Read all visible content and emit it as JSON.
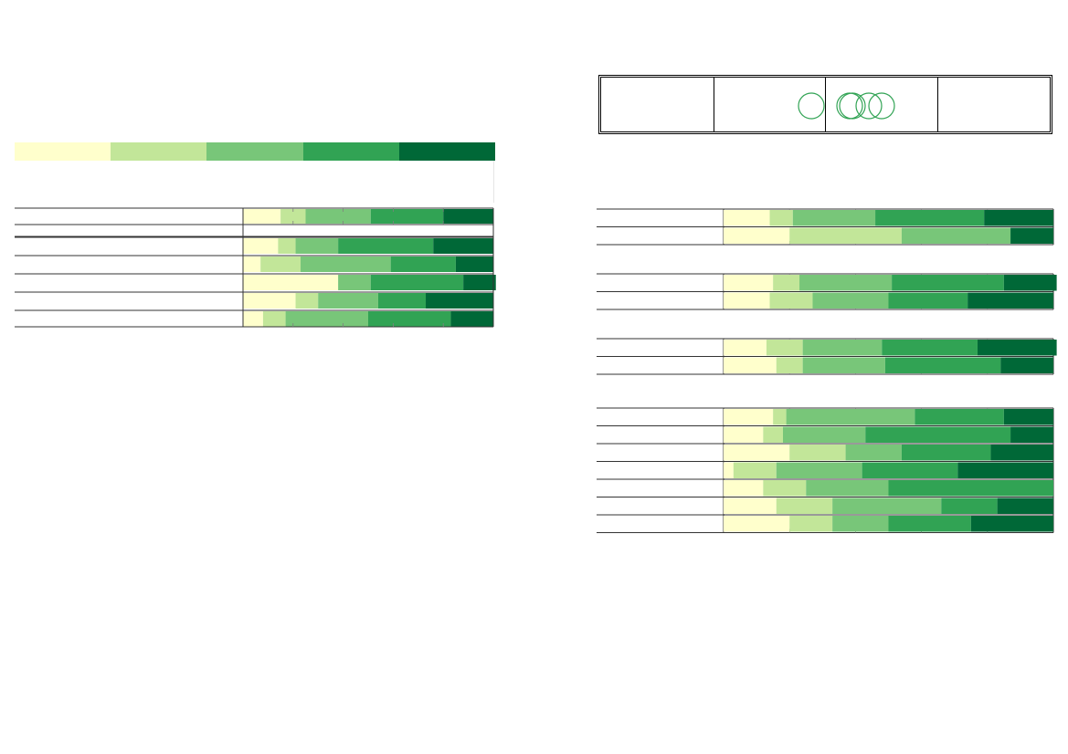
{
  "palette": [
    "#ffffcc",
    "#c2e699",
    "#78c679",
    "#31a354",
    "#006837"
  ],
  "legend": {
    "swatches": 5
  },
  "circles_box": {
    "columns": 4,
    "circles_in_col2": 1,
    "circles_in_col3": 4
  },
  "chart_data": [
    {
      "type": "bar",
      "stacked": true,
      "orientation": "horizontal",
      "title": "",
      "xlabel": "",
      "ylabel": "",
      "xlim": [
        0,
        100
      ],
      "categories": [
        "",
        "",
        "",
        "",
        "",
        ""
      ],
      "series": [
        {
          "values": [
            15,
            14,
            7,
            38,
            21,
            8
          ]
        },
        {
          "values": [
            10,
            7,
            16,
            0,
            9,
            9
          ]
        },
        {
          "values": [
            26,
            17,
            36,
            13,
            24,
            33
          ]
        },
        {
          "values": [
            29,
            38,
            26,
            37,
            19,
            33
          ]
        },
        {
          "values": [
            20,
            24,
            15,
            13,
            27,
            17
          ]
        }
      ]
    },
    {
      "type": "bar",
      "stacked": true,
      "orientation": "horizontal",
      "title": "",
      "xlabel": "",
      "ylabel": "",
      "xlim": [
        0,
        100
      ],
      "groups": [
        {
          "categories": [
            "",
            ""
          ]
        },
        {
          "categories": [
            "",
            ""
          ]
        },
        {
          "categories": [
            "",
            ""
          ]
        },
        {
          "categories": [
            "",
            "",
            "",
            "",
            "",
            "",
            ""
          ]
        }
      ],
      "series": [
        {
          "values": [
            14,
            20,
            15,
            14,
            13,
            16,
            15,
            12,
            20,
            3,
            12,
            16,
            20
          ]
        },
        {
          "values": [
            7,
            34,
            8,
            13,
            11,
            8,
            4,
            6,
            17,
            13,
            13,
            17,
            13
          ]
        },
        {
          "values": [
            25,
            33,
            28,
            23,
            24,
            25,
            39,
            25,
            17,
            26,
            25,
            33,
            17
          ]
        },
        {
          "values": [
            33,
            0,
            34,
            24,
            29,
            35,
            27,
            44,
            27,
            29,
            50,
            17,
            25
          ]
        },
        {
          "values": [
            21,
            13,
            16,
            26,
            24,
            16,
            15,
            13,
            19,
            29,
            0,
            17,
            25
          ]
        }
      ]
    }
  ]
}
